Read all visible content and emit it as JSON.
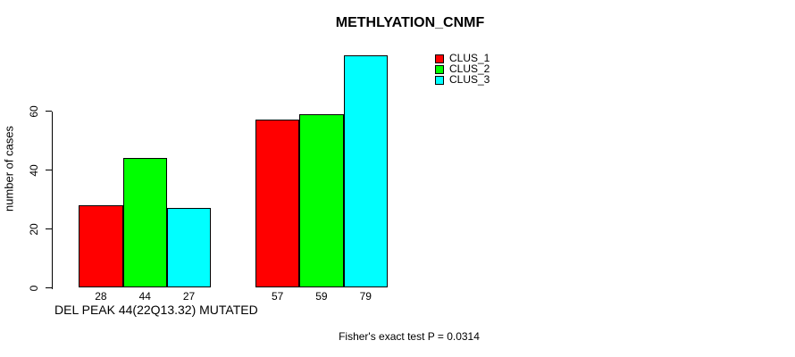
{
  "background": "#ffffff",
  "chart_data": {
    "type": "bar",
    "title": "METHLYATION_CNMF",
    "ylabel": "number of cases",
    "xlabel": "DEL PEAK 44(22Q13.32) MUTATED",
    "footnote": "Fisher's exact test P = 0.0314",
    "yticks": [
      0,
      20,
      40,
      60
    ],
    "ylim": [
      0,
      80
    ],
    "grid": false,
    "legend_position": "top-right",
    "bar_border_color": "#000000",
    "categories": [
      "",
      ""
    ],
    "series": [
      {
        "name": "CLUS_1",
        "color": "#ff0000",
        "values": [
          28,
          57
        ]
      },
      {
        "name": "CLUS_2",
        "color": "#00ff00",
        "values": [
          44,
          59
        ]
      },
      {
        "name": "CLUS_3",
        "color": "#00ffff",
        "values": [
          27,
          79
        ]
      }
    ],
    "bar_value_labels_shown": true
  }
}
